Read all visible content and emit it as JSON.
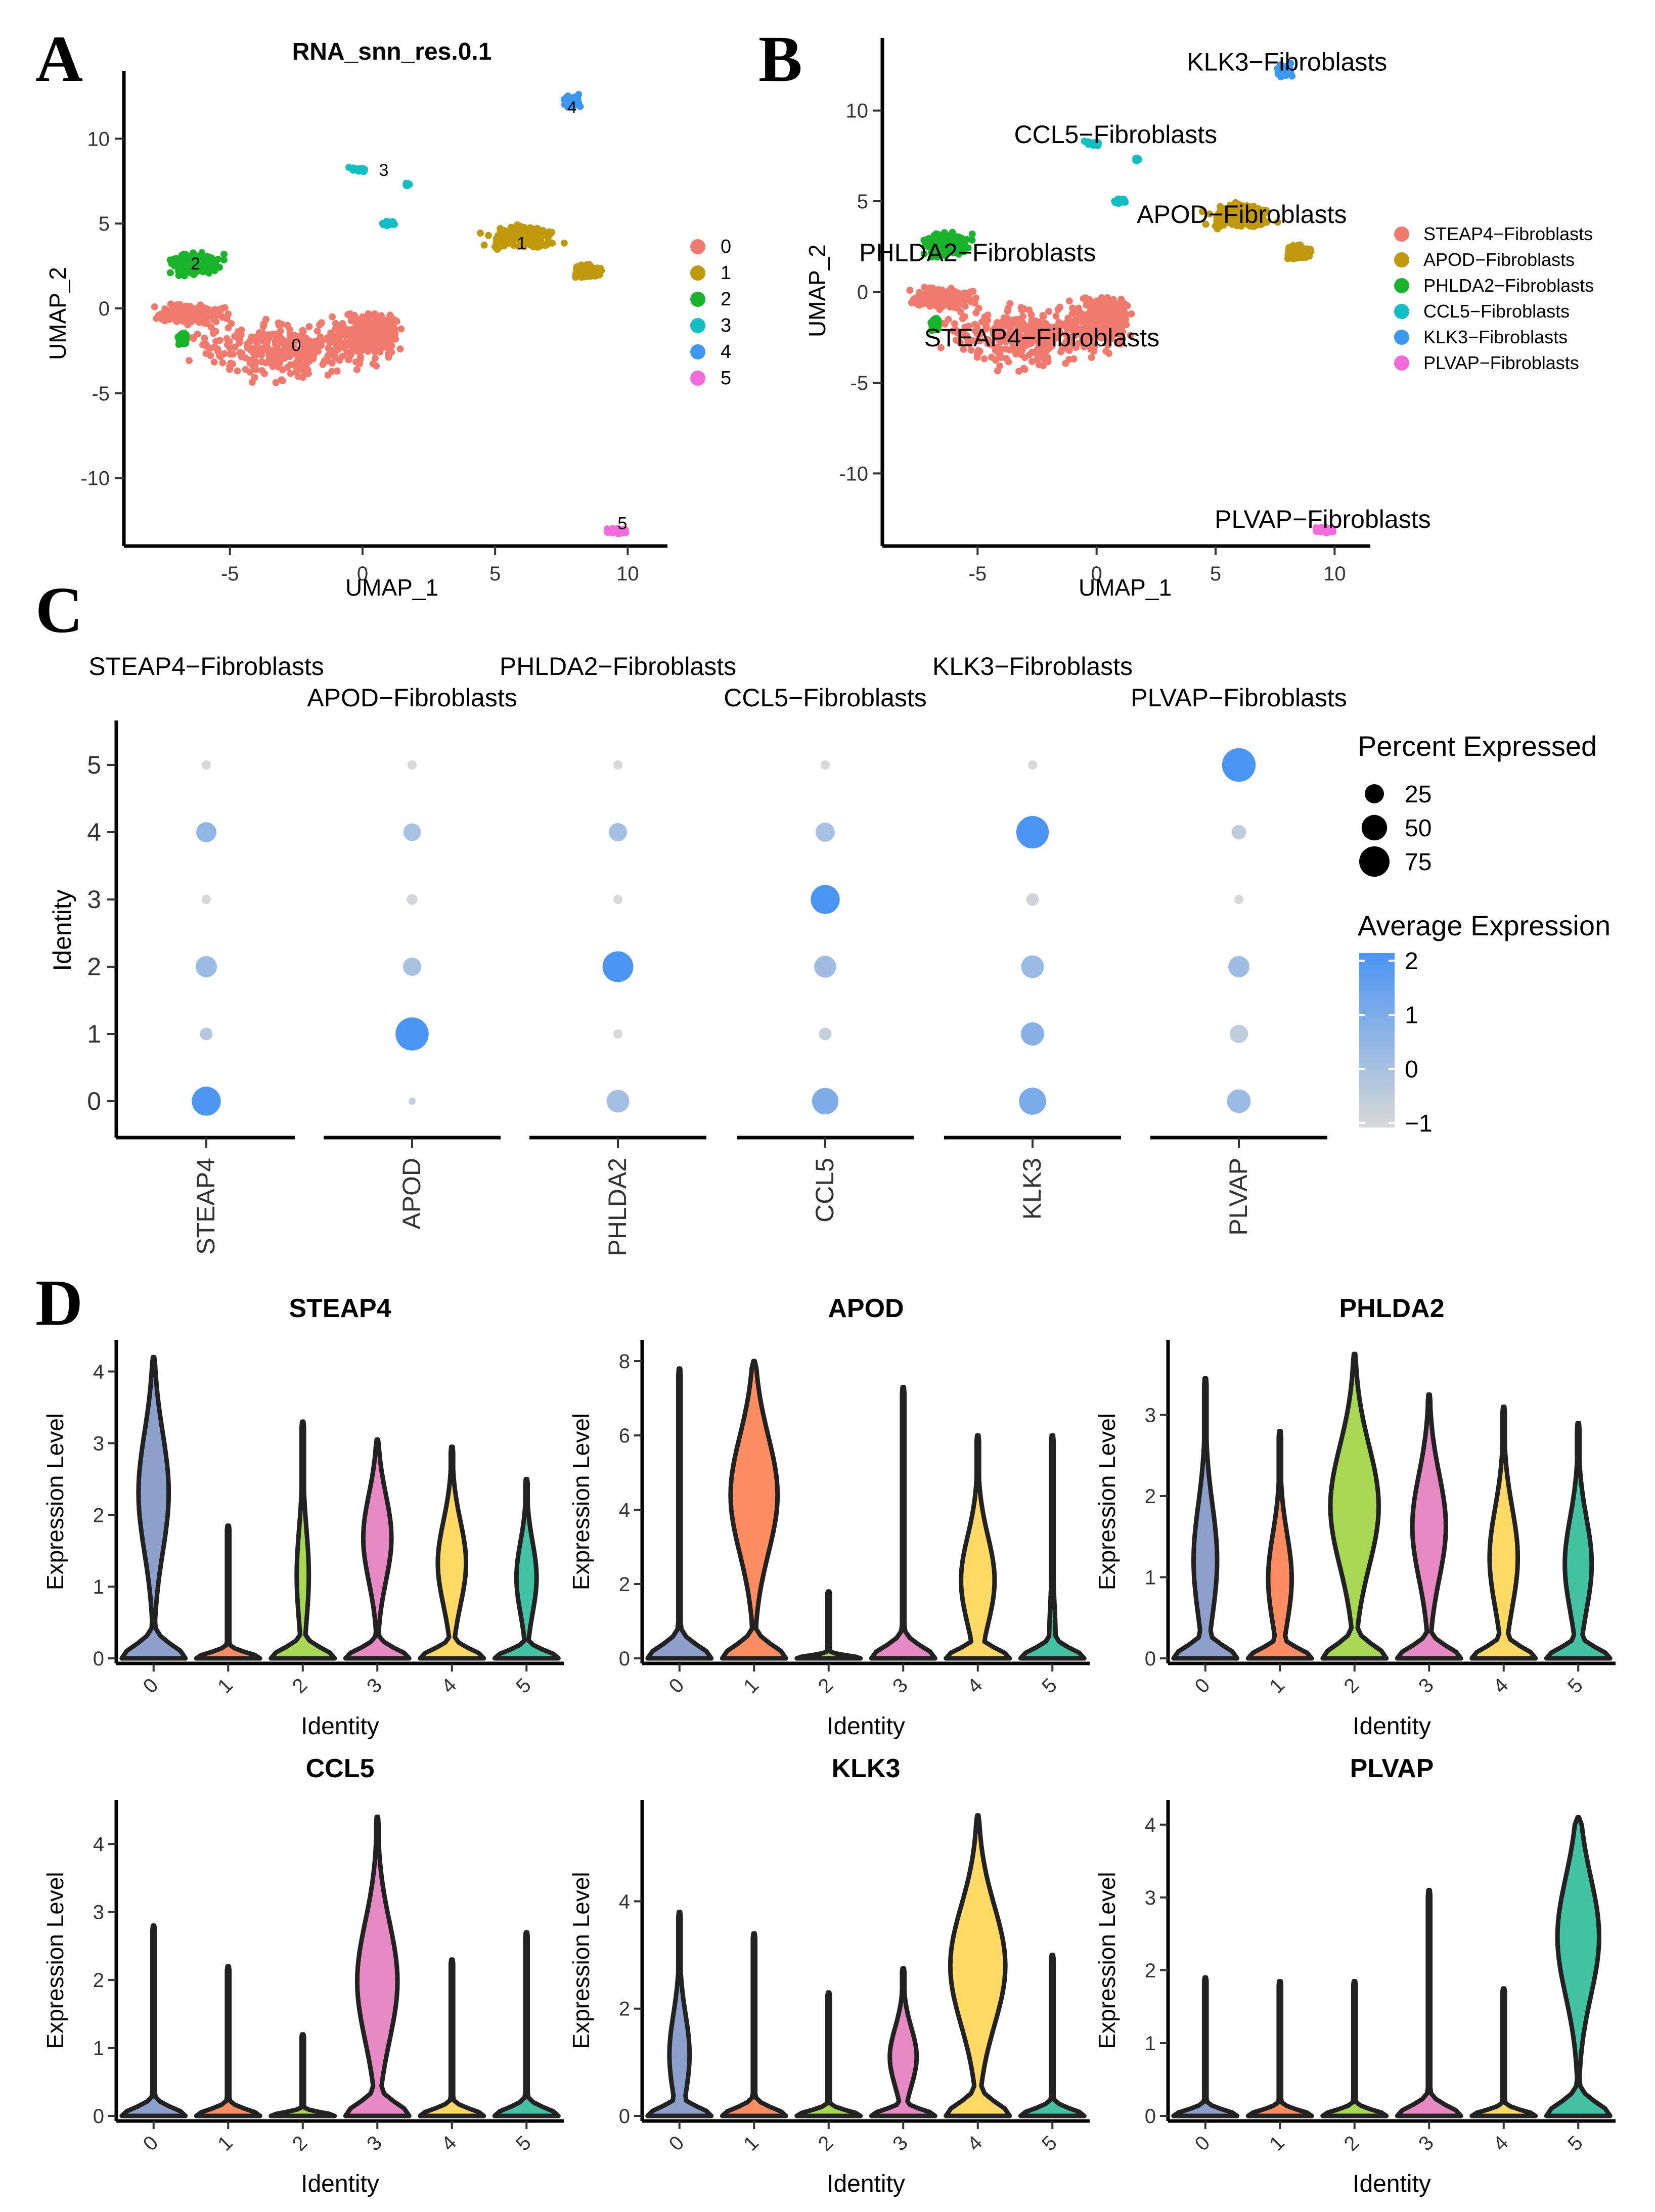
{
  "panels": {
    "A": "A",
    "B": "B",
    "C": "C",
    "D": "D"
  },
  "colors": {
    "c0": "#F07A6E",
    "c1": "#C09A0C",
    "c2": "#19B42C",
    "c3": "#11BFC4",
    "c4": "#3C97EE",
    "c5": "#F26ADB",
    "violin": [
      "#8DA0CB",
      "#FC8D62",
      "#A6D854",
      "#E78AC3",
      "#FFD966",
      "#44C2A4"
    ],
    "dot_low": "#D8D8D8",
    "dot_high": "#4A94F2"
  },
  "chart_data": [
    {
      "id": "A",
      "type": "scatter",
      "title": "RNA_snn_res.0.1",
      "xlabel": "UMAP_1",
      "ylabel": "UMAP_2",
      "xlim": [
        -9,
        11.5
      ],
      "ylim": [
        -14,
        14
      ],
      "xticks": [
        "-5",
        "0",
        "5",
        "10"
      ],
      "xtick_values": [
        -5,
        0,
        5,
        10
      ],
      "yticks": [
        "-10",
        "-5",
        "0",
        "5",
        "10"
      ],
      "ytick_values": [
        -10,
        -5,
        0,
        5,
        10
      ],
      "legend": [
        "0",
        "1",
        "2",
        "3",
        "4",
        "5"
      ],
      "cluster_labels": [
        {
          "text": "0",
          "x": -2.5,
          "y": -2.5
        },
        {
          "text": "1",
          "x": 6,
          "y": 3.5
        },
        {
          "text": "2",
          "x": -6.3,
          "y": 2.3
        },
        {
          "text": "3",
          "x": 0.8,
          "y": 7.8
        },
        {
          "text": "4",
          "x": 7.9,
          "y": 11.5
        },
        {
          "text": "5",
          "x": 9.8,
          "y": -13
        }
      ]
    },
    {
      "id": "B",
      "type": "scatter",
      "xlabel": "UMAP_1",
      "ylabel": "UMAP_2",
      "xlim": [
        -9,
        11.5
      ],
      "ylim": [
        -14,
        14
      ],
      "xticks": [
        "-5",
        "0",
        "5",
        "10"
      ],
      "xtick_values": [
        -5,
        0,
        5,
        10
      ],
      "yticks": [
        "-10",
        "-5",
        "0",
        "5",
        "10"
      ],
      "ytick_values": [
        -10,
        -5,
        0,
        5,
        10
      ],
      "legend": [
        "STEAP4−Fibroblasts",
        "APOD−Fibroblasts",
        "PHLDA2−Fibroblasts",
        "CCL5−Fibroblasts",
        "KLK3−Fibroblasts",
        "PLVAP−Fibroblasts"
      ],
      "cluster_labels": [
        {
          "text": "KLK3−Fibroblasts",
          "x": 8,
          "y": 12.2
        },
        {
          "text": "CCL5−Fibroblasts",
          "x": 0.8,
          "y": 8.2
        },
        {
          "text": "APOD−Fibroblasts",
          "x": 6.1,
          "y": 3.8
        },
        {
          "text": "PHLDA2−Fibroblasts",
          "x": -5,
          "y": 1.7
        },
        {
          "text": "STEAP4−Fibroblasts",
          "x": -2.3,
          "y": -3
        },
        {
          "text": "PLVAP−Fibroblasts",
          "x": 9.5,
          "y": -13
        }
      ]
    },
    {
      "id": "C",
      "type": "scatter",
      "ylabel": "Identity",
      "identities": [
        "0",
        "1",
        "2",
        "3",
        "4",
        "5"
      ],
      "genes": [
        "STEAP4",
        "APOD",
        "PHLDA2",
        "CCL5",
        "KLK3",
        "PLVAP"
      ],
      "group_labels": [
        "STEAP4−Fibroblasts",
        "APOD−Fibroblasts",
        "PHLDA2−Fibroblasts",
        "CCL5−Fibroblasts",
        "KLK3−Fibroblasts",
        "PLVAP−Fibroblasts"
      ],
      "percent_expressed": [
        [
          68,
          1,
          38,
          55,
          58,
          42
        ],
        [
          8,
          92,
          3,
          8,
          40,
          22
        ],
        [
          32,
          22,
          78,
          35,
          38,
          32
        ],
        [
          3,
          5,
          3,
          68,
          8,
          3
        ],
        [
          28,
          20,
          22,
          25,
          88,
          12
        ],
        [
          3,
          3,
          3,
          3,
          3,
          95
        ]
      ],
      "average_expression": [
        [
          1.9,
          -0.6,
          0.1,
          0.9,
          1.0,
          0.3
        ],
        [
          -0.3,
          2.0,
          -1.0,
          -0.6,
          0.7,
          -0.5
        ],
        [
          0.3,
          0.0,
          2.0,
          0.2,
          0.3,
          0.2
        ],
        [
          -1.0,
          -0.9,
          -1.0,
          2.0,
          -0.8,
          -1.0
        ],
        [
          0.5,
          0.0,
          0.1,
          0.0,
          2.0,
          -0.5
        ],
        [
          -1.0,
          -1.0,
          -1.0,
          -1.0,
          -1.0,
          2.0
        ]
      ],
      "legend_size_title": "Percent Expressed",
      "legend_size_values": [
        "25",
        "50",
        "75"
      ],
      "legend_color_title": "Average Expression",
      "legend_color_values": [
        "2",
        "1",
        "0",
        "−1"
      ]
    },
    {
      "id": "D",
      "type": "violin",
      "xlabel": "Identity",
      "ylabel": "Expression Level",
      "categories": [
        "0",
        "1",
        "2",
        "3",
        "4",
        "5"
      ],
      "panels": [
        {
          "title": "STEAP4",
          "ymax": 4.3,
          "yticks": [
            "0",
            "1",
            "2",
            "3",
            "4"
          ],
          "ytick_values": [
            0,
            1,
            2,
            3,
            4
          ],
          "max": [
            4.2,
            1.85,
            3.3,
            3.05,
            2.95,
            2.5
          ],
          "peak_at": [
            0.55,
            0.5,
            0.35,
            0.55,
            0.45,
            0.45
          ],
          "peak_width": [
            0.45,
            0.02,
            0.18,
            0.42,
            0.42,
            0.3
          ]
        },
        {
          "title": "APOD",
          "ymax": 8.3,
          "yticks": [
            "0",
            "2",
            "4",
            "6",
            "8"
          ],
          "ytick_values": [
            0,
            2,
            4,
            6,
            8
          ],
          "max": [
            7.8,
            8.0,
            1.8,
            7.3,
            6.0,
            6.0
          ],
          "peak_at": [
            0.05,
            0.55,
            0.05,
            0.05,
            0.35,
            0.05
          ],
          "peak_width": [
            0.02,
            0.7,
            0.02,
            0.02,
            0.5,
            0.1
          ]
        },
        {
          "title": "PHLDA2",
          "ymax": 3.8,
          "yticks": [
            "0",
            "1",
            "2",
            "3"
          ],
          "ytick_values": [
            0,
            1,
            2,
            3
          ],
          "max": [
            3.45,
            2.8,
            3.75,
            3.25,
            3.1,
            2.9
          ],
          "peak_at": [
            0.35,
            0.35,
            0.5,
            0.5,
            0.4,
            0.4
          ],
          "peak_width": [
            0.35,
            0.35,
            0.72,
            0.5,
            0.42,
            0.4
          ]
        },
        {
          "title": "CCL5",
          "ymax": 4.5,
          "yticks": [
            "0",
            "1",
            "2",
            "3",
            "4"
          ],
          "ytick_values": [
            0,
            1,
            2,
            3,
            4
          ],
          "max": [
            2.8,
            2.2,
            1.2,
            4.4,
            2.3,
            2.7
          ],
          "peak_at": [
            0.05,
            0.05,
            0.05,
            0.45,
            0.05,
            0.05
          ],
          "peak_width": [
            0.02,
            0.02,
            0.02,
            0.6,
            0.02,
            0.02
          ]
        },
        {
          "title": "KLK3",
          "ymax": 5.7,
          "yticks": [
            "0",
            "2",
            "4"
          ],
          "ytick_values": [
            0,
            2,
            4
          ],
          "max": [
            3.8,
            3.4,
            2.3,
            2.75,
            5.6,
            3.0
          ],
          "peak_at": [
            0.3,
            0.05,
            0.05,
            0.4,
            0.5,
            0.05
          ],
          "peak_width": [
            0.3,
            0.02,
            0.02,
            0.4,
            0.82,
            0.02
          ]
        },
        {
          "title": "PLVAP",
          "ymax": 4.2,
          "yticks": [
            "0",
            "1",
            "2",
            "3",
            "4"
          ],
          "ytick_values": [
            0,
            1,
            2,
            3,
            4
          ],
          "max": [
            1.9,
            1.85,
            1.85,
            3.1,
            1.75,
            4.1
          ],
          "peak_at": [
            0.05,
            0.05,
            0.05,
            0.05,
            0.05,
            0.6
          ],
          "peak_width": [
            0.02,
            0.02,
            0.02,
            0.02,
            0.02,
            0.62
          ]
        }
      ]
    }
  ]
}
